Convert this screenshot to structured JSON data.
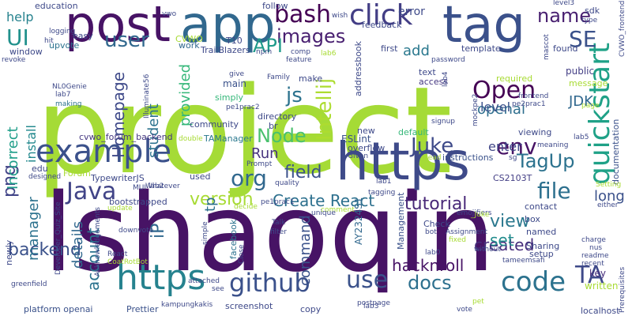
{
  "words": [
    {
      "text": "project",
      "color": "#a5db36"
    },
    {
      "text": "lshaoqin",
      "color": "#471365"
    },
    {
      "text": "post",
      "color": "#471365"
    },
    {
      "text": "app",
      "color": "#31688e"
    },
    {
      "text": "tag",
      "color": "#3b518b"
    },
    {
      "text": "https",
      "color": "#3e4a89"
    },
    {
      "text": "https",
      "color": "#26828e"
    },
    {
      "text": "example",
      "color": "#3b518b"
    },
    {
      "text": "quickstart",
      "color": "#1fa187"
    },
    {
      "text": "click",
      "color": "#433e85"
    },
    {
      "text": "bash",
      "color": "#440154"
    },
    {
      "text": "images",
      "color": "#481f70"
    },
    {
      "text": "Open",
      "color": "#440154"
    },
    {
      "text": "user",
      "color": "#31688e"
    },
    {
      "text": "UI",
      "color": "#21918c"
    },
    {
      "text": "API",
      "color": "#1f9a8a"
    },
    {
      "text": "js",
      "color": "#2c728e"
    },
    {
      "text": "Intellij",
      "color": "#addc30"
    },
    {
      "text": "name",
      "color": "#481f70"
    },
    {
      "text": "SE",
      "color": "#3b528b"
    },
    {
      "text": "env",
      "color": "#471365"
    },
    {
      "text": "Juke",
      "color": "#3e4a89"
    },
    {
      "text": "Node",
      "color": "#4ac16d"
    },
    {
      "text": "Java",
      "color": "#414487"
    },
    {
      "text": "org",
      "color": "#31688e"
    },
    {
      "text": "TagUp",
      "color": "#2c728e"
    },
    {
      "text": "file",
      "color": "#2d708e"
    },
    {
      "text": "Create React",
      "color": "#2d708e"
    },
    {
      "text": "tutorial",
      "color": "#482878"
    },
    {
      "text": "version",
      "color": "#a8db34"
    },
    {
      "text": "backend",
      "color": "#3b528b"
    },
    {
      "text": "github",
      "color": "#3b518b"
    },
    {
      "text": "hacknroll",
      "color": "#471365"
    },
    {
      "text": "use",
      "color": "#3b528b"
    },
    {
      "text": "docs",
      "color": "#2d708e"
    },
    {
      "text": "code",
      "color": "#2c728e"
    },
    {
      "text": "TA",
      "color": "#3e4989"
    },
    {
      "text": "created",
      "color": "#472d7b"
    },
    {
      "text": "view",
      "color": "#2a788e"
    },
    {
      "text": "set",
      "color": "#228c8d"
    },
    {
      "text": "field",
      "color": "#3b518b"
    },
    {
      "text": "openai",
      "color": "#2e6e8e"
    },
    {
      "text": "level",
      "color": "#3b518b"
    },
    {
      "text": "JDK",
      "color": "#31688e"
    },
    {
      "text": "add",
      "color": "#2a788e"
    },
    {
      "text": "error",
      "color": "#3e4a89"
    },
    {
      "text": "Homepage",
      "color": "#3e4989"
    },
    {
      "text": "student",
      "color": "#2c728e"
    },
    {
      "text": "provided",
      "color": "#35b779"
    },
    {
      "text": "png",
      "color": "#414487"
    },
    {
      "text": "Incorrect",
      "color": "#1f9e89"
    },
    {
      "text": "install",
      "color": "#23898e"
    },
    {
      "text": "manager",
      "color": "#2c728e"
    },
    {
      "text": "account",
      "color": "#2c728e"
    },
    {
      "text": "details",
      "color": "#31688e"
    },
    {
      "text": "command",
      "color": "#3b528b"
    },
    {
      "text": "help",
      "color": "#26828e"
    },
    {
      "text": "Run",
      "color": "#46327e"
    },
    {
      "text": "tp",
      "color": "#2d708e"
    },
    {
      "text": "iP",
      "color": "#31688e"
    },
    {
      "text": "long",
      "color": "#3b518b"
    },
    {
      "text": "enter",
      "color": "#404688"
    },
    {
      "text": "ESLint",
      "color": "#3b528b"
    },
    {
      "text": "cvwo_forum_backend",
      "color": "#453781"
    },
    {
      "text": "TAManager",
      "color": "#2a788e"
    },
    {
      "text": "TypewriterJS",
      "color": "#3e4989"
    },
    {
      "text": "bootstrapped",
      "color": "#3e4989"
    },
    {
      "text": "platform openai",
      "color": "#3b528b"
    },
    {
      "text": "Prettier",
      "color": "#3b528b"
    },
    {
      "text": "screenshot",
      "color": "#3e4989"
    },
    {
      "text": "localhost",
      "color": "#3e4989"
    },
    {
      "text": "AY2324S1",
      "color": "#31688e"
    },
    {
      "text": "Management",
      "color": "#3b528b"
    },
    {
      "text": "facebook",
      "color": "#2c728e"
    },
    {
      "text": "written",
      "color": "#a8db34"
    },
    {
      "text": "key",
      "color": "#472d7b"
    },
    {
      "text": "box",
      "color": "#3e4a89"
    },
    {
      "text": "CS2103T",
      "color": "#433e85"
    },
    {
      "text": "instructions",
      "color": "#3b528b"
    },
    {
      "text": "access",
      "color": "#453781"
    },
    {
      "text": "viewing",
      "color": "#3e4989"
    },
    {
      "text": "public",
      "color": "#433e85"
    },
    {
      "text": "documentation",
      "color": "#3b528b"
    },
    {
      "text": "default",
      "color": "#35b779"
    },
    {
      "text": "overflow",
      "color": "#3e4989"
    },
    {
      "text": "new",
      "color": "#3e4989"
    },
    {
      "text": "directory",
      "color": "#3e4989"
    },
    {
      "text": "simply",
      "color": "#35b779"
    },
    {
      "text": "main",
      "color": "#3b528b"
    },
    {
      "text": "community",
      "color": "#3e4989"
    },
    {
      "text": "TrailBlazers",
      "color": "#3e4989"
    },
    {
      "text": "work",
      "color": "#31688e"
    },
    {
      "text": "upvote",
      "color": "#2c728e"
    },
    {
      "text": "window",
      "color": "#3e4989"
    },
    {
      "text": "education",
      "color": "#3e4989"
    },
    {
      "text": "T10",
      "color": "#3e4989"
    },
    {
      "text": "follow",
      "color": "#3e4989"
    },
    {
      "text": "feedback",
      "color": "#3e4989"
    },
    {
      "text": "template",
      "color": "#3e4989"
    },
    {
      "text": "first",
      "color": "#3e4989"
    },
    {
      "text": "found",
      "color": "#3e4989"
    },
    {
      "text": "sdk",
      "color": "#3e4989"
    },
    {
      "text": "make",
      "color": "#3e4989"
    },
    {
      "text": "Family",
      "color": "#3e4989"
    },
    {
      "text": "give",
      "color": "#3e4989"
    },
    {
      "text": "pe1prac2",
      "color": "#3e4989"
    },
    {
      "text": "pe1prac1",
      "color": "#3e4989"
    },
    {
      "text": "pe2prac1",
      "color": "#3e4989"
    },
    {
      "text": "frontend",
      "color": "#3e4989"
    },
    {
      "text": "addressbook",
      "color": "#3e4989"
    },
    {
      "text": "text",
      "color": "#3e4989"
    },
    {
      "text": "password",
      "color": "#3e4989"
    },
    {
      "text": "required",
      "color": "#a8db34"
    },
    {
      "text": "message",
      "color": "#a8db34"
    },
    {
      "text": "signup",
      "color": "#3e4989"
    },
    {
      "text": "mockpe2",
      "color": "#3e4989"
    },
    {
      "text": "meaning",
      "color": "#3e4989"
    },
    {
      "text": "lab5",
      "color": "#3e4989"
    },
    {
      "text": "lab1",
      "color": "#3e4989"
    },
    {
      "text": "lab2",
      "color": "#3e4989"
    },
    {
      "text": "lab0",
      "color": "#3e4989"
    },
    {
      "text": "lab3",
      "color": "#3e4989"
    },
    {
      "text": "lab4",
      "color": "#3e4989"
    },
    {
      "text": "lab6",
      "color": "#a8db34"
    },
    {
      "text": "lab7",
      "color": "#3e4989"
    },
    {
      "text": "level3",
      "color": "#3e4989"
    },
    {
      "text": "NL0Genie",
      "color": "#3e4989"
    },
    {
      "text": "Illuminate56",
      "color": "#3e4989"
    },
    {
      "text": "making",
      "color": "#2c728e"
    },
    {
      "text": "edu",
      "color": "#3e4989"
    },
    {
      "text": "designed",
      "color": "#3e4989"
    },
    {
      "text": "Forum",
      "color": "#a8db34"
    },
    {
      "text": "used",
      "color": "#3e4989"
    },
    {
      "text": "Given",
      "color": "#3e4989"
    },
    {
      "text": "Prompt",
      "color": "#3e4989"
    },
    {
      "text": "quality",
      "color": "#3e4989"
    },
    {
      "text": "Check",
      "color": "#3e4989"
    },
    {
      "text": "Sharing",
      "color": "#3e4989"
    },
    {
      "text": "setup",
      "color": "#3e4989"
    },
    {
      "text": "named",
      "color": "#3e4989"
    },
    {
      "text": "contact",
      "color": "#3e4989"
    },
    {
      "text": "charge",
      "color": "#3e4989"
    },
    {
      "text": "nus",
      "color": "#3e4989"
    },
    {
      "text": "readme",
      "color": "#3e4989"
    },
    {
      "text": "recent",
      "color": "#3e4989"
    },
    {
      "text": "Prerequisites",
      "color": "#3e4989"
    },
    {
      "text": "Setting",
      "color": "#a8db34"
    },
    {
      "text": "either",
      "color": "#3e4989"
    },
    {
      "text": "tameemsafi",
      "color": "#3e4989"
    },
    {
      "text": "emojifiers",
      "color": "#3e4989"
    },
    {
      "text": "Assignment",
      "color": "#3e4989"
    },
    {
      "text": "without",
      "color": "#3e4989"
    },
    {
      "text": "bot",
      "color": "#3e4989"
    },
    {
      "text": "fixed",
      "color": "#a8db34"
    },
    {
      "text": "postpage",
      "color": "#3e4989"
    },
    {
      "text": "vote",
      "color": "#3e4989"
    },
    {
      "text": "pet",
      "color": "#a8db34"
    },
    {
      "text": "kampungkakis",
      "color": "#3e4989"
    },
    {
      "text": "see",
      "color": "#3e4989"
    },
    {
      "text": "copy",
      "color": "#3e4989"
    },
    {
      "text": "attached",
      "color": "#3e4989"
    },
    {
      "text": "Close",
      "color": "#3e4989"
    },
    {
      "text": "Talk",
      "color": "#3e4989"
    },
    {
      "text": "filter",
      "color": "#3e4989"
    },
    {
      "text": "decide",
      "color": "#a8db34"
    },
    {
      "text": "MUI",
      "color": "#3e4989"
    },
    {
      "text": "Whatever",
      "color": "#3e4989"
    },
    {
      "text": "update",
      "color": "#a8db34"
    },
    {
      "text": "downvote",
      "color": "#3e4989"
    },
    {
      "text": "React",
      "color": "#3e4989"
    },
    {
      "text": "CoatRotBot",
      "color": "#a8db34"
    },
    {
      "text": "Acknowledgements",
      "color": "#3e4989"
    },
    {
      "text": "simple",
      "color": "#3e4989"
    },
    {
      "text": "Developer_Quiz_Site",
      "color": "#3e4989"
    },
    {
      "text": "newly",
      "color": "#3e4989"
    },
    {
      "text": "greenfield",
      "color": "#3e4989"
    },
    {
      "text": "logging",
      "color": "#3e4989"
    },
    {
      "text": "hit",
      "color": "#3e4989"
    },
    {
      "text": "easy",
      "color": "#3e4989"
    },
    {
      "text": "npm",
      "color": "#3e4989"
    },
    {
      "text": "revoke",
      "color": "#3e4989"
    },
    {
      "text": "vwo",
      "color": "#3e4989"
    },
    {
      "text": "CVWO_frontend",
      "color": "#3e4989"
    },
    {
      "text": "mascot",
      "color": "#3e4989"
    },
    {
      "text": "type",
      "color": "#3e4989"
    },
    {
      "text": "page",
      "color": "#a8db34"
    },
    {
      "text": "wish",
      "color": "#3e4989"
    },
    {
      "text": "comp",
      "color": "#3e4989"
    },
    {
      "text": "feature",
      "color": "#3e4989"
    },
    {
      "text": "CVWO",
      "color": "#a8db34"
    },
    {
      "text": "comment",
      "color": "#a8db34"
    },
    {
      "text": "unique",
      "color": "#3e4989"
    },
    {
      "text": "br",
      "color": "#3e4989"
    },
    {
      "text": "tagging",
      "color": "#3e4989"
    },
    {
      "text": "double",
      "color": "#a8db34"
    },
    {
      "text": "_Juke",
      "color": "#a8db34"
    },
    {
      "text": "head",
      "color": "#a8db34"
    },
    {
      "text": "sg",
      "color": "#3e4989"
    }
  ]
}
